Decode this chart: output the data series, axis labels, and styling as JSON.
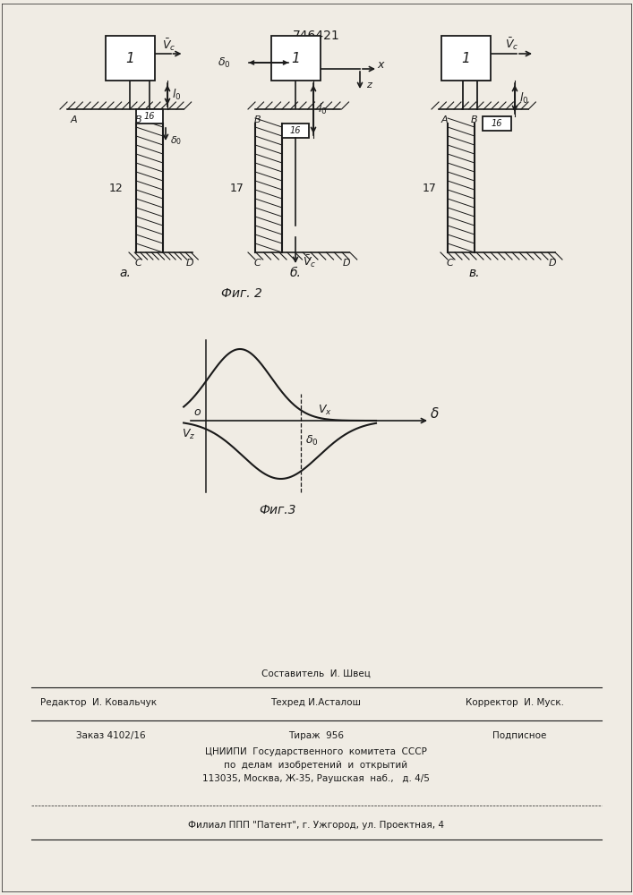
{
  "title": "746421",
  "fig2_label": "Фиг. 2",
  "fig3_label": "Фиг.3",
  "sub_a": "а.",
  "sub_b": "б.",
  "sub_v": "в.",
  "bg_color": "#f0ece4",
  "line_color": "#1a1a1a"
}
